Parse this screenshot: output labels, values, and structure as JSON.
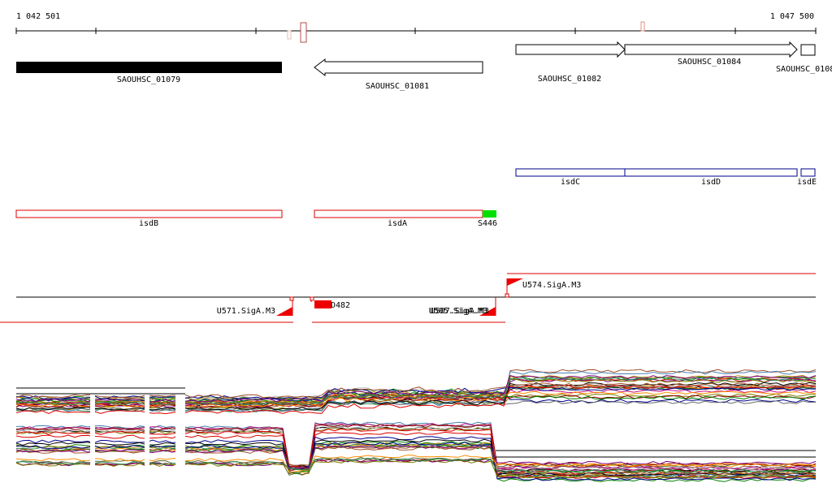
{
  "ruler": {
    "start": "1 042 501",
    "end": "1 047 500"
  },
  "genes": [
    "SAOUHSC_01079",
    "SAOUHSC_01081",
    "SAOUHSC_01082",
    "SAOUHSC_01084",
    "SAOUHSC_0108"
  ],
  "features_blue": [
    "isdC",
    "isdD",
    "isdE"
  ],
  "features_red": [
    "isdB",
    "isdA",
    "S446"
  ],
  "promoters": [
    "U571.SigA.M3",
    "D482",
    "U505.SigA.M3",
    "U507.SigA.M3",
    "U574.SigA.M3"
  ]
}
